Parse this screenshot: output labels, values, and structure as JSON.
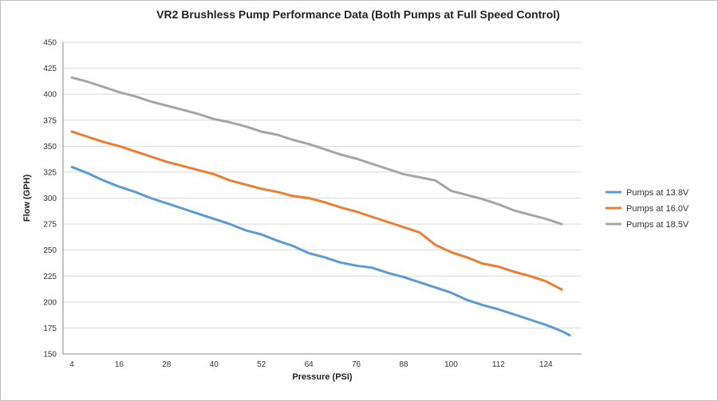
{
  "chart_data": {
    "type": "line",
    "title": "VR2 Brushless Pump Performance Data (Both Pumps at Full Speed Control)",
    "xlabel": "Pressure (PSI)",
    "ylabel": "Flow (GPH)",
    "x_ticks": [
      4,
      16,
      28,
      40,
      52,
      64,
      76,
      88,
      100,
      112,
      124
    ],
    "xlim": [
      4,
      130
    ],
    "ylim": [
      150,
      450
    ],
    "y_ticks": [
      150,
      175,
      200,
      225,
      250,
      275,
      300,
      325,
      350,
      375,
      400,
      425,
      450
    ],
    "grid": "horizontal",
    "legend_position": "right",
    "series": [
      {
        "name": "Pumps at 13.8V",
        "color": "#5b9bd5",
        "x": [
          4,
          8,
          12,
          16,
          20,
          24,
          28,
          32,
          36,
          40,
          44,
          48,
          52,
          56,
          60,
          64,
          68,
          72,
          76,
          80,
          84,
          88,
          92,
          96,
          100,
          104,
          108,
          112,
          116,
          120,
          124,
          128,
          130
        ],
        "y": [
          330,
          324,
          317,
          311,
          306,
          300,
          295,
          290,
          285,
          280,
          275,
          269,
          265,
          259,
          254,
          247,
          243,
          238,
          235,
          233,
          228,
          224,
          219,
          214,
          209,
          202,
          197,
          193,
          188,
          183,
          178,
          172,
          168
        ]
      },
      {
        "name": "Pumps at 16.0V",
        "color": "#ed7d31",
        "x": [
          4,
          8,
          12,
          16,
          20,
          24,
          28,
          32,
          36,
          40,
          44,
          48,
          52,
          56,
          60,
          64,
          68,
          72,
          76,
          80,
          84,
          88,
          92,
          96,
          100,
          104,
          108,
          112,
          116,
          120,
          124,
          128
        ],
        "y": [
          364,
          359,
          354,
          350,
          345,
          340,
          335,
          331,
          327,
          323,
          317,
          313,
          309,
          306,
          302,
          300,
          296,
          291,
          287,
          282,
          277,
          272,
          267,
          255,
          248,
          243,
          237,
          234,
          229,
          225,
          220,
          212
        ]
      },
      {
        "name": "Pumps at 18.5V",
        "color": "#a5a5a5",
        "x": [
          4,
          8,
          12,
          16,
          20,
          24,
          28,
          32,
          36,
          40,
          44,
          48,
          52,
          56,
          60,
          64,
          68,
          72,
          76,
          80,
          84,
          88,
          92,
          96,
          100,
          104,
          108,
          112,
          116,
          120,
          124,
          128
        ],
        "y": [
          416,
          412,
          407,
          402,
          398,
          393,
          389,
          385,
          381,
          376,
          373,
          369,
          364,
          361,
          356,
          352,
          347,
          342,
          338,
          333,
          328,
          323,
          320,
          317,
          307,
          303,
          299,
          294,
          288,
          284,
          280,
          275
        ]
      }
    ]
  }
}
